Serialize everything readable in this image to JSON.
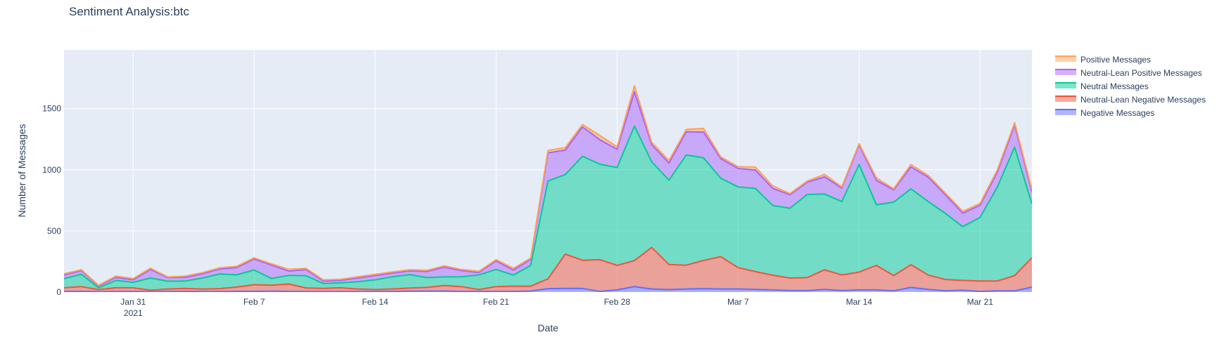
{
  "chart_data": {
    "type": "area",
    "title": "Sentiment Analysis:btc",
    "xlabel": "Date",
    "ylabel": "Number of Messages",
    "ylim": [
      0,
      1980
    ],
    "grid": true,
    "legend_position": "right",
    "xlim": [
      "2021-01-27",
      "2021-03-24"
    ],
    "x": [
      "2021-01-27",
      "2021-01-28",
      "2021-01-29",
      "2021-01-30",
      "2021-01-31",
      "2021-02-01",
      "2021-02-02",
      "2021-02-03",
      "2021-02-04",
      "2021-02-05",
      "2021-02-06",
      "2021-02-07",
      "2021-02-08",
      "2021-02-09",
      "2021-02-10",
      "2021-02-11",
      "2021-02-12",
      "2021-02-13",
      "2021-02-14",
      "2021-02-15",
      "2021-02-16",
      "2021-02-17",
      "2021-02-18",
      "2021-02-19",
      "2021-02-20",
      "2021-02-21",
      "2021-02-22",
      "2021-02-23",
      "2021-02-24",
      "2021-02-25",
      "2021-02-26",
      "2021-02-27",
      "2021-02-28",
      "2021-03-01",
      "2021-03-02",
      "2021-03-03",
      "2021-03-04",
      "2021-03-05",
      "2021-03-06",
      "2021-03-07",
      "2021-03-08",
      "2021-03-09",
      "2021-03-10",
      "2021-03-11",
      "2021-03-12",
      "2021-03-13",
      "2021-03-14",
      "2021-03-15",
      "2021-03-16",
      "2021-03-17",
      "2021-03-18",
      "2021-03-19",
      "2021-03-20",
      "2021-03-21",
      "2021-03-22",
      "2021-03-23",
      "2021-03-24"
    ],
    "x_ticks": [
      {
        "date": "2021-01-31",
        "label": "Jan 31",
        "sublabel": "2021"
      },
      {
        "date": "2021-02-07",
        "label": "Feb 7",
        "sublabel": ""
      },
      {
        "date": "2021-02-14",
        "label": "Feb 14",
        "sublabel": ""
      },
      {
        "date": "2021-02-21",
        "label": "Feb 21",
        "sublabel": ""
      },
      {
        "date": "2021-02-28",
        "label": "Feb 28",
        "sublabel": ""
      },
      {
        "date": "2021-03-07",
        "label": "Mar 7",
        "sublabel": ""
      },
      {
        "date": "2021-03-14",
        "label": "Mar 14",
        "sublabel": ""
      },
      {
        "date": "2021-03-21",
        "label": "Mar 21",
        "sublabel": ""
      }
    ],
    "y_ticks": [
      0,
      500,
      1000,
      1500
    ],
    "y_tick_labels": [
      "0",
      "500",
      "1000",
      "1500"
    ],
    "stacked": true,
    "series": [
      {
        "name": "Negative Messages",
        "color": "#636efa",
        "values": [
          5,
          5,
          3,
          5,
          5,
          3,
          4,
          5,
          4,
          4,
          6,
          6,
          7,
          5,
          4,
          4,
          4,
          4,
          4,
          5,
          7,
          8,
          8,
          5,
          5,
          5,
          5,
          8,
          28,
          30,
          30,
          5,
          18,
          45,
          25,
          20,
          25,
          28,
          25,
          25,
          22,
          18,
          12,
          12,
          22,
          12,
          18,
          18,
          10,
          38,
          22,
          10,
          15,
          5,
          10,
          10,
          40
        ]
      },
      {
        "name": "Neutral-Lean Negative Messages",
        "color": "#EF553B",
        "values": [
          30,
          40,
          17,
          30,
          30,
          12,
          20,
          25,
          20,
          24,
          35,
          54,
          49,
          61,
          30,
          26,
          31,
          21,
          16,
          20,
          26,
          30,
          46,
          40,
          15,
          40,
          44,
          40,
          80,
          280,
          230,
          260,
          200,
          212,
          340,
          205,
          195,
          230,
          265,
          175,
          145,
          120,
          103,
          106,
          160,
          128,
          145,
          200,
          125,
          185,
          117,
          93,
          80,
          85,
          80,
          125,
          240
        ]
      },
      {
        "name": "Neutral Messages",
        "color": "#00cc96",
        "values": [
          75,
          100,
          15,
          60,
          45,
          100,
          65,
          60,
          90,
          120,
          100,
          120,
          55,
          70,
          100,
          40,
          40,
          60,
          80,
          100,
          110,
          80,
          70,
          80,
          120,
          140,
          90,
          170,
          800,
          650,
          850,
          780,
          800,
          1100,
          700,
          690,
          900,
          840,
          640,
          660,
          680,
          570,
          570,
          680,
          620,
          600,
          880,
          495,
          600,
          620,
          600,
          540,
          440,
          520,
          770,
          1050,
          440
        ]
      },
      {
        "name": "Neutral-Lean Positive Messages",
        "color": "#ab63fa",
        "values": [
          30,
          30,
          15,
          25,
          20,
          70,
          30,
          30,
          35,
          40,
          60,
          90,
          110,
          35,
          50,
          20,
          20,
          30,
          35,
          30,
          30,
          50,
          80,
          50,
          20,
          70,
          40,
          50,
          230,
          200,
          240,
          200,
          150,
          280,
          140,
          140,
          190,
          210,
          160,
          150,
          150,
          140,
          110,
          100,
          140,
          110,
          160,
          200,
          100,
          180,
          200,
          150,
          110,
          100,
          120,
          180,
          100
        ]
      },
      {
        "name": "Positive Messages",
        "color": "#FFA15A",
        "values": [
          10,
          8,
          5,
          10,
          10,
          10,
          5,
          10,
          10,
          10,
          10,
          10,
          10,
          15,
          10,
          10,
          10,
          10,
          10,
          10,
          10,
          10,
          10,
          10,
          10,
          10,
          15,
          10,
          20,
          20,
          20,
          35,
          20,
          50,
          20,
          20,
          20,
          30,
          15,
          15,
          25,
          20,
          10,
          10,
          20,
          10,
          10,
          20,
          10,
          20,
          15,
          15,
          15,
          15,
          20,
          20,
          20
        ]
      }
    ]
  }
}
